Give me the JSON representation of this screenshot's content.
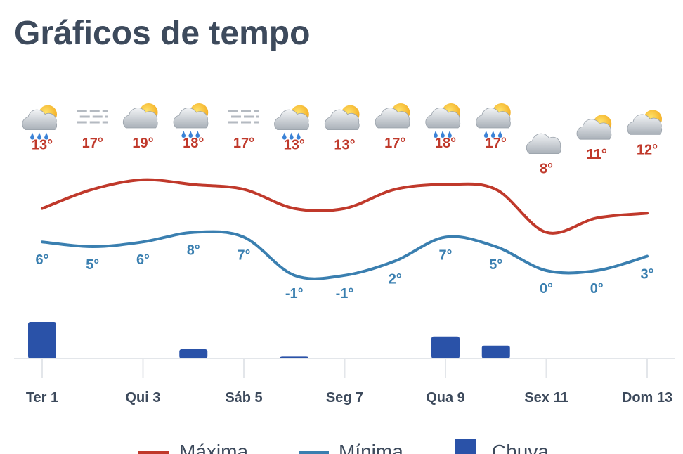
{
  "title": "Gráficos de tempo",
  "chart_data": {
    "type": "line",
    "categories": [
      "Ter 1",
      null,
      "Qui 3",
      null,
      "Sáb 5",
      null,
      "Seg 7",
      null,
      "Qua 9",
      null,
      "Sex 11",
      null,
      "Dom 13"
    ],
    "series": [
      {
        "name": "Máxima",
        "color": "#c0392b",
        "values": [
          13,
          17,
          19,
          18,
          17,
          13,
          13,
          17,
          18,
          17,
          8,
          11,
          12
        ],
        "value_labels": [
          "13°",
          "17°",
          "19°",
          "18°",
          "17°",
          "13°",
          "13°",
          "17°",
          "18°",
          "17°",
          "8°",
          "11°",
          "12°"
        ]
      },
      {
        "name": "Mínima",
        "color": "#3a7fb0",
        "values": [
          6,
          5,
          6,
          8,
          7,
          -1,
          -1,
          2,
          7,
          5,
          0,
          0,
          3
        ],
        "value_labels": [
          "6°",
          "5°",
          "6°",
          "8°",
          "7°",
          "-1°",
          "-1°",
          "2°",
          "7°",
          "5°",
          "0°",
          "0°",
          "3°"
        ]
      },
      {
        "name": "Chuva",
        "color": "#2a52a8",
        "type": "bar",
        "values": [
          10,
          0,
          0,
          2.5,
          0,
          0.5,
          0,
          0,
          6,
          3.5,
          0,
          0,
          0
        ]
      }
    ]
  }
}
